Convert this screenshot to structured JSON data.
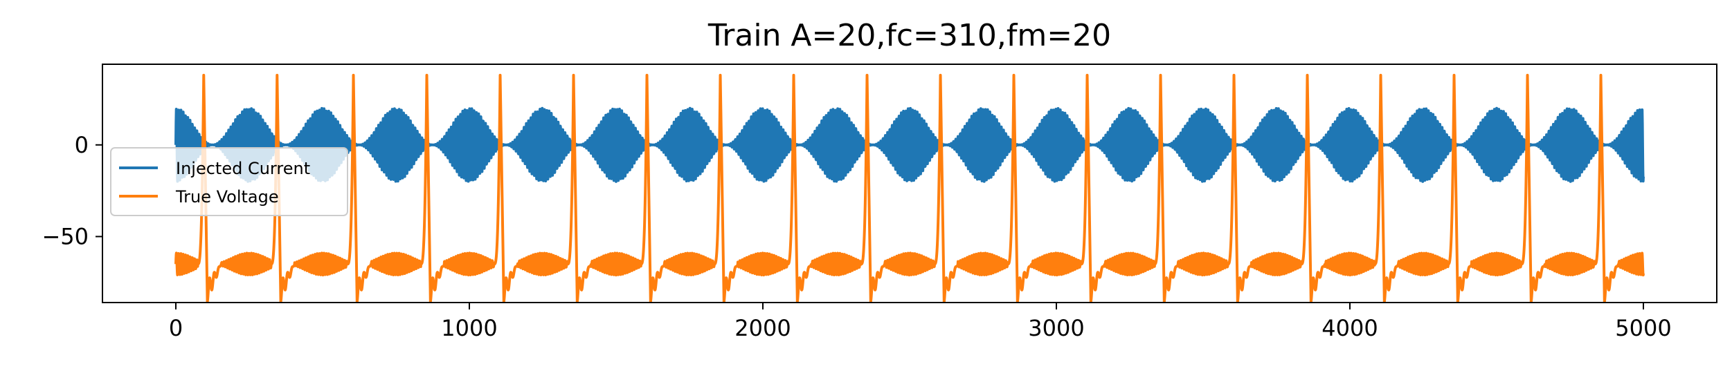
{
  "chart_data": {
    "type": "line",
    "title": "Train A=20,fc=310,fm=20",
    "xlabel": "",
    "ylabel": "",
    "xlim": [
      -250,
      5250
    ],
    "ylim": [
      -86,
      44
    ],
    "xticks": [
      0,
      1000,
      2000,
      3000,
      4000,
      5000
    ],
    "xtick_labels": [
      "0",
      "1000",
      "2000",
      "3000",
      "4000",
      "5000"
    ],
    "yticks": [
      0,
      -50
    ],
    "ytick_labels": [
      "0",
      "−50"
    ],
    "grid": false,
    "legend_position": "center-left",
    "series": [
      {
        "name": "Injected Current",
        "color": "#1f77b4",
        "description": "amplitude-modulated sinusoid, carrier fc=310 Hz, modulation fm=20 Hz, amplitude 20",
        "amplitude": 20,
        "fc": 310,
        "fm": 20,
        "x_start": 0,
        "x_end": 5000
      },
      {
        "name": "True Voltage",
        "color": "#ff7f0e",
        "resting": -65,
        "spike_peak": 38,
        "trough": -80,
        "spike_times": [
          95,
          345,
          605,
          855,
          1105,
          1355,
          1605,
          1855,
          2105,
          2355,
          2605,
          2855,
          3105,
          3355,
          3605,
          3855,
          4105,
          4355,
          4605,
          4855
        ],
        "x_start": 0,
        "x_end": 5000
      }
    ]
  }
}
